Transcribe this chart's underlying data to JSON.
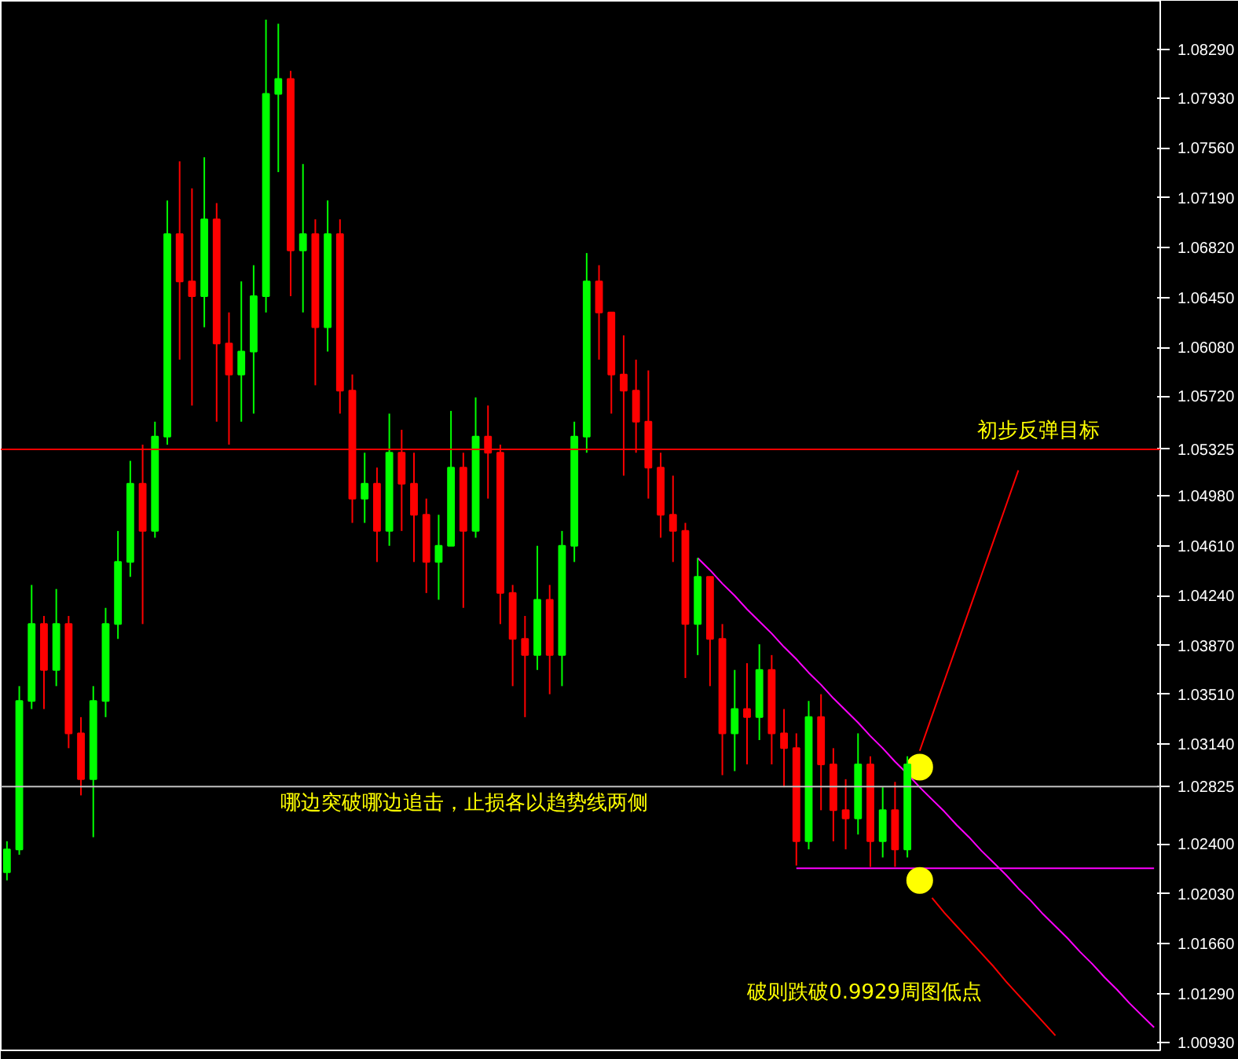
{
  "chart_data": {
    "type": "candlestick",
    "categories": [
      null,
      null,
      null,
      null,
      null,
      null,
      null,
      null,
      null,
      null,
      null,
      null,
      null,
      null,
      null,
      null,
      null,
      null,
      null,
      null,
      null,
      null,
      null,
      null,
      null,
      null,
      null,
      null,
      null,
      null,
      null,
      null,
      null,
      null,
      null,
      null,
      null,
      null,
      null,
      null,
      null,
      null,
      null,
      null,
      null,
      null,
      null,
      null,
      null,
      null,
      null,
      null,
      null,
      null,
      null,
      null,
      null,
      null,
      null,
      null,
      null,
      null,
      null,
      null,
      null,
      null,
      null,
      null,
      null,
      null,
      null,
      null,
      null,
      null,
      null,
      null,
      null,
      null,
      null,
      null,
      null,
      null,
      null,
      null,
      null,
      null,
      null,
      null,
      null,
      null,
      null,
      null,
      null,
      null
    ],
    "ohlc": [
      [
        1.0219,
        1.0242,
        1.0213,
        1.0236
      ],
      [
        1.0236,
        1.0357,
        1.0232,
        1.0346
      ],
      [
        1.0346,
        1.0432,
        1.034,
        1.0403
      ],
      [
        1.0403,
        1.0409,
        1.034,
        1.0369
      ],
      [
        1.0369,
        1.0429,
        1.0357,
        1.0403
      ],
      [
        1.0403,
        1.0409,
        1.0311,
        1.0322
      ],
      [
        1.0322,
        1.0334,
        1.0276,
        1.0288
      ],
      [
        1.0288,
        1.0357,
        1.0245,
        1.0346
      ],
      [
        1.0346,
        1.0415,
        1.0334,
        1.0403
      ],
      [
        1.0403,
        1.0472,
        1.0392,
        1.0449
      ],
      [
        1.0449,
        1.0524,
        1.0438,
        1.0507
      ],
      [
        1.0507,
        1.0536,
        1.0403,
        1.0472
      ],
      [
        1.0472,
        1.0553,
        1.0467,
        1.0542
      ],
      [
        1.0542,
        1.0717,
        1.0536,
        1.0692
      ],
      [
        1.0692,
        1.0746,
        1.0599,
        1.0657
      ],
      [
        1.0657,
        1.0726,
        1.0565,
        1.0646
      ],
      [
        1.0646,
        1.0749,
        1.0623,
        1.0703
      ],
      [
        1.0703,
        1.0715,
        1.0553,
        1.0611
      ],
      [
        1.0611,
        1.0634,
        1.0536,
        1.0588
      ],
      [
        1.0588,
        1.0657,
        1.0553,
        1.0605
      ],
      [
        1.0605,
        1.0669,
        1.0559,
        1.0646
      ],
      [
        1.0646,
        1.0851,
        1.0634,
        1.0796
      ],
      [
        1.0796,
        1.0848,
        1.0738,
        1.0807
      ],
      [
        1.0807,
        1.0813,
        1.0646,
        1.068
      ],
      [
        1.068,
        1.0744,
        1.0634,
        1.0692
      ],
      [
        1.0692,
        1.0703,
        1.058,
        1.0623
      ],
      [
        1.0623,
        1.0717,
        1.0605,
        1.0692
      ],
      [
        1.0692,
        1.0703,
        1.0559,
        1.0576
      ],
      [
        1.0576,
        1.0588,
        1.0478,
        1.0496
      ],
      [
        1.0496,
        1.053,
        1.0478,
        1.0507
      ],
      [
        1.0507,
        1.0519,
        1.0449,
        1.0472
      ],
      [
        1.0472,
        1.0559,
        1.0461,
        1.053
      ],
      [
        1.053,
        1.0547,
        1.0472,
        1.0507
      ],
      [
        1.0507,
        1.053,
        1.0449,
        1.0484
      ],
      [
        1.0484,
        1.0496,
        1.0426,
        1.0449
      ],
      [
        1.0449,
        1.0484,
        1.0421,
        1.0461
      ],
      [
        1.0461,
        1.0561,
        1.0461,
        1.0519
      ],
      [
        1.0519,
        1.053,
        1.0415,
        1.0472
      ],
      [
        1.0472,
        1.0571,
        1.0467,
        1.0542
      ],
      [
        1.0542,
        1.0565,
        1.0496,
        1.053
      ],
      [
        1.053,
        1.0536,
        1.0403,
        1.0426
      ],
      [
        1.0426,
        1.0432,
        1.0357,
        1.0392
      ],
      [
        1.0392,
        1.0409,
        1.0334,
        1.038
      ],
      [
        1.038,
        1.0461,
        1.0369,
        1.0421
      ],
      [
        1.0421,
        1.0432,
        1.0351,
        1.038
      ],
      [
        1.038,
        1.0472,
        1.0357,
        1.0461
      ],
      [
        1.0461,
        1.0553,
        1.0449,
        1.0542
      ],
      [
        1.0542,
        1.0678,
        1.053,
        1.0657
      ],
      [
        1.0657,
        1.0669,
        1.0599,
        1.0634
      ],
      [
        1.0634,
        1.0634,
        1.0559,
        1.0588
      ],
      [
        1.0588,
        1.0617,
        1.0513,
        1.0576
      ],
      [
        1.0576,
        1.0599,
        1.053,
        1.0553
      ],
      [
        1.0553,
        1.0591,
        1.0496,
        1.0519
      ],
      [
        1.0519,
        1.053,
        1.0467,
        1.0484
      ],
      [
        1.0484,
        1.0513,
        1.0449,
        1.0472
      ],
      [
        1.0472,
        1.0478,
        1.0363,
        1.0403
      ],
      [
        1.0403,
        1.0452,
        1.038,
        1.0438
      ],
      [
        1.0438,
        1.0438,
        1.0357,
        1.0392
      ],
      [
        1.0392,
        1.0403,
        1.0291,
        1.0322
      ],
      [
        1.0322,
        1.0369,
        1.0294,
        1.034
      ],
      [
        1.034,
        1.0374,
        1.0299,
        1.0334
      ],
      [
        1.0334,
        1.0388,
        1.0317,
        1.0369
      ],
      [
        1.0369,
        1.038,
        1.0299,
        1.0322
      ],
      [
        1.0322,
        1.034,
        1.0282,
        1.0311
      ],
      [
        1.0311,
        1.0322,
        1.0224,
        1.0242
      ],
      [
        1.0242,
        1.0346,
        1.0236,
        1.0334
      ],
      [
        1.0334,
        1.0351,
        1.0265,
        1.0299
      ],
      [
        1.0299,
        1.0311,
        1.0242,
        1.0265
      ],
      [
        1.0265,
        1.0288,
        1.0236,
        1.0259
      ],
      [
        1.0259,
        1.0322,
        1.0247,
        1.0299
      ],
      [
        1.0299,
        1.0305,
        1.0223,
        1.0242
      ],
      [
        1.0242,
        1.0282,
        1.023,
        1.0265
      ],
      [
        1.0265,
        1.0286,
        1.0223,
        1.0236
      ],
      [
        1.0236,
        1.0305,
        1.023,
        1.0299
      ],
      null,
      null,
      null,
      null,
      null,
      null,
      null,
      null,
      null,
      null,
      null,
      null,
      null,
      null,
      null,
      null,
      null,
      null,
      null,
      null
    ],
    "colors": [
      "#00ff00",
      "#00ff00",
      "#00ff00",
      "#ff0000",
      "#00ff00",
      "#ff0000",
      "#ff0000",
      "#00ff00",
      "#00ff00",
      "#00ff00",
      "#00ff00",
      "#ff0000",
      "#00ff00",
      "#00ff00",
      "#ff0000",
      "#ff0000",
      "#00ff00",
      "#ff0000",
      "#ff0000",
      "#00ff00",
      "#00ff00",
      "#00ff00",
      "#00ff00",
      "#ff0000",
      "#00ff00",
      "#ff0000",
      "#00ff00",
      "#ff0000",
      "#ff0000",
      "#00ff00",
      "#ff0000",
      "#00ff00",
      "#ff0000",
      "#ff0000",
      "#ff0000",
      "#00ff00",
      "#00ff00",
      "#ff0000",
      "#00ff00",
      "#ff0000",
      "#ff0000",
      "#ff0000",
      "#ff0000",
      "#00ff00",
      "#ff0000",
      "#00ff00",
      "#00ff00",
      "#00ff00",
      "#ff0000",
      "#ff0000",
      "#ff0000",
      "#ff0000",
      "#ff0000",
      "#ff0000",
      "#ff0000",
      "#ff0000",
      "#00ff00",
      "#ff0000",
      "#ff0000",
      "#00ff00",
      "#ff0000",
      "#00ff00",
      "#ff0000",
      "#ff0000",
      "#ff0000",
      "#00ff00",
      "#ff0000",
      "#ff0000",
      "#ff0000",
      "#00ff00",
      "#ff0000",
      "#00ff00",
      "#ff0000",
      "#00ff00",
      null,
      null,
      null,
      null,
      null,
      null,
      null,
      null,
      null,
      null,
      null,
      null,
      null,
      null,
      null,
      null,
      null,
      null,
      null,
      null
    ],
    "series": [
      {
        "type": "line",
        "color": "#ff00ff",
        "values": [
          null,
          null,
          null,
          null,
          null,
          null,
          null,
          null,
          null,
          null,
          null,
          null,
          null,
          null,
          null,
          null,
          null,
          null,
          null,
          null,
          null,
          null,
          null,
          null,
          null,
          null,
          null,
          null,
          null,
          null,
          null,
          null,
          null,
          null,
          null,
          null,
          null,
          null,
          null,
          null,
          null,
          null,
          null,
          null,
          null,
          null,
          null,
          null,
          null,
          null,
          null,
          null,
          null,
          null,
          null,
          null,
          null,
          null,
          null,
          null,
          null,
          null,
          null,
          null,
          1.0222,
          1.0222,
          1.0222,
          1.0222,
          1.0222,
          1.0222,
          1.0222,
          1.0222,
          1.0222,
          1.0222,
          1.0222,
          1.0222,
          1.0222,
          1.0222,
          1.0222,
          1.0222,
          1.0222,
          1.0222,
          1.0222,
          1.0222,
          1.0222,
          1.0222,
          1.0222,
          1.0222,
          1.0222,
          1.0222,
          1.0222,
          1.0222,
          1.0222,
          1.0222
        ]
      },
      {
        "type": "line",
        "color": "#ff00ff",
        "values": [
          null,
          null,
          null,
          null,
          null,
          null,
          null,
          null,
          null,
          null,
          null,
          null,
          null,
          null,
          null,
          null,
          null,
          null,
          null,
          null,
          null,
          null,
          null,
          null,
          null,
          null,
          null,
          null,
          null,
          null,
          null,
          null,
          null,
          null,
          null,
          null,
          null,
          null,
          null,
          null,
          null,
          null,
          null,
          null,
          null,
          null,
          null,
          null,
          null,
          null,
          null,
          null,
          null,
          null,
          null,
          null,
          1.0452,
          1.0443,
          1.0433,
          1.0424,
          1.0414,
          1.0405,
          1.0396,
          1.0386,
          1.0377,
          1.0367,
          1.0358,
          1.0348,
          1.0339,
          1.033,
          1.032,
          1.0311,
          1.0301,
          1.0292,
          1.0282,
          1.0273,
          1.0264,
          1.0254,
          1.0245,
          1.0235,
          1.0226,
          1.0217,
          1.0207,
          1.0198,
          1.0188,
          1.0179,
          1.017,
          1.016,
          1.0151,
          1.0141,
          1.0132,
          1.0122,
          1.0113,
          1.0104
        ]
      },
      {
        "type": "line",
        "color": "#ff0000",
        "values": [
          null,
          null,
          null,
          null,
          null,
          null,
          null,
          null,
          null,
          null,
          null,
          null,
          null,
          null,
          null,
          null,
          null,
          null,
          null,
          null,
          null,
          null,
          null,
          null,
          null,
          null,
          null,
          null,
          null,
          null,
          null,
          null,
          null,
          null,
          null,
          null,
          null,
          null,
          null,
          null,
          null,
          null,
          null,
          null,
          null,
          null,
          null,
          null,
          null,
          null,
          null,
          null,
          null,
          null,
          null,
          null,
          null,
          null,
          null,
          null,
          null,
          null,
          null,
          null,
          null,
          null,
          null,
          null,
          null,
          null,
          null,
          null,
          null,
          null,
          1.0309,
          1.0335,
          1.0361,
          1.0387,
          1.0413,
          1.0439,
          1.0465,
          1.0491,
          1.0517,
          null,
          null,
          null,
          null,
          null,
          null,
          null,
          null,
          null,
          null,
          null
        ]
      },
      {
        "type": "line",
        "color": "#ff0000",
        "values": [
          null,
          null,
          null,
          null,
          null,
          null,
          null,
          null,
          null,
          null,
          null,
          null,
          null,
          null,
          null,
          null,
          null,
          null,
          null,
          null,
          null,
          null,
          null,
          null,
          null,
          null,
          null,
          null,
          null,
          null,
          null,
          null,
          null,
          null,
          null,
          null,
          null,
          null,
          null,
          null,
          null,
          null,
          null,
          null,
          null,
          null,
          null,
          null,
          null,
          null,
          null,
          null,
          null,
          null,
          null,
          null,
          null,
          null,
          null,
          null,
          null,
          null,
          null,
          null,
          null,
          null,
          null,
          null,
          null,
          null,
          null,
          null,
          null,
          null,
          null,
          1.02,
          1.0189,
          1.0179,
          1.0169,
          1.0159,
          1.0149,
          1.0138,
          1.0128,
          1.0118,
          1.0108,
          1.0098,
          null,
          null,
          null,
          null,
          null,
          null,
          null,
          null
        ]
      },
      {
        "type": "scatter",
        "color": "#ffff00",
        "values": [
          null,
          null,
          null,
          null,
          null,
          null,
          null,
          null,
          null,
          null,
          null,
          null,
          null,
          null,
          null,
          null,
          null,
          null,
          null,
          null,
          null,
          null,
          null,
          null,
          null,
          null,
          null,
          null,
          null,
          null,
          null,
          null,
          null,
          null,
          null,
          null,
          null,
          null,
          null,
          null,
          null,
          null,
          null,
          null,
          null,
          null,
          null,
          null,
          null,
          null,
          null,
          null,
          null,
          null,
          null,
          null,
          null,
          null,
          null,
          null,
          null,
          null,
          null,
          null,
          null,
          null,
          null,
          null,
          null,
          null,
          null,
          null,
          null,
          null,
          1.0297,
          null,
          null,
          null,
          null,
          null,
          null,
          null,
          null,
          null,
          null,
          null,
          null,
          null,
          null,
          null,
          null,
          null,
          null,
          null
        ]
      },
      {
        "type": "scatter",
        "color": "#ffff00",
        "values": [
          null,
          null,
          null,
          null,
          null,
          null,
          null,
          null,
          null,
          null,
          null,
          null,
          null,
          null,
          null,
          null,
          null,
          null,
          null,
          null,
          null,
          null,
          null,
          null,
          null,
          null,
          null,
          null,
          null,
          null,
          null,
          null,
          null,
          null,
          null,
          null,
          null,
          null,
          null,
          null,
          null,
          null,
          null,
          null,
          null,
          null,
          null,
          null,
          null,
          null,
          null,
          null,
          null,
          null,
          null,
          null,
          null,
          null,
          null,
          null,
          null,
          null,
          null,
          null,
          null,
          null,
          null,
          null,
          null,
          null,
          null,
          null,
          null,
          null,
          1.0213,
          null,
          null,
          null,
          null,
          null,
          null,
          null,
          null,
          null,
          null,
          null,
          null,
          null,
          null,
          null,
          null,
          null,
          null,
          null
        ]
      }
    ],
    "ref_lines": [
      {
        "axis": "y",
        "value": 1.05325,
        "label": "1.05325",
        "color": "#ff0000"
      },
      {
        "axis": "y",
        "value": 1.02825,
        "label": "1.02825",
        "color": "#c0c0c0"
      }
    ],
    "annotations": [
      "初步反弹目标",
      "哪边突破哪边追击，止损各以趋势线两侧",
      "破则跌破0.9929周图低点"
    ],
    "ylim": [
      1.0087,
      1.0865
    ],
    "yticks": [
      {
        "value": 1.0829,
        "label": "1.08290"
      },
      {
        "value": 1.0793,
        "label": "1.07930"
      },
      {
        "value": 1.0756,
        "label": "1.07560"
      },
      {
        "value": 1.0719,
        "label": "1.07190"
      },
      {
        "value": 1.0682,
        "label": "1.06820"
      },
      {
        "value": 1.0645,
        "label": "1.06450"
      },
      {
        "value": 1.0608,
        "label": "1.06080"
      },
      {
        "value": 1.0572,
        "label": "1.05720"
      },
      {
        "value": 1.0498,
        "label": "1.04980"
      },
      {
        "value": 1.0461,
        "label": "1.04610"
      },
      {
        "value": 1.0424,
        "label": "1.04240"
      },
      {
        "value": 1.0387,
        "label": "1.03870"
      },
      {
        "value": 1.0351,
        "label": "1.03510"
      },
      {
        "value": 1.0314,
        "label": "1.03140"
      },
      {
        "value": 1.024,
        "label": "1.02400"
      },
      {
        "value": 1.0203,
        "label": "1.02030"
      },
      {
        "value": 1.0166,
        "label": "1.01660"
      },
      {
        "value": 1.0129,
        "label": "1.01290"
      },
      {
        "value": 1.0093,
        "label": "1.00930"
      }
    ],
    "tick_labels": "y"
  }
}
